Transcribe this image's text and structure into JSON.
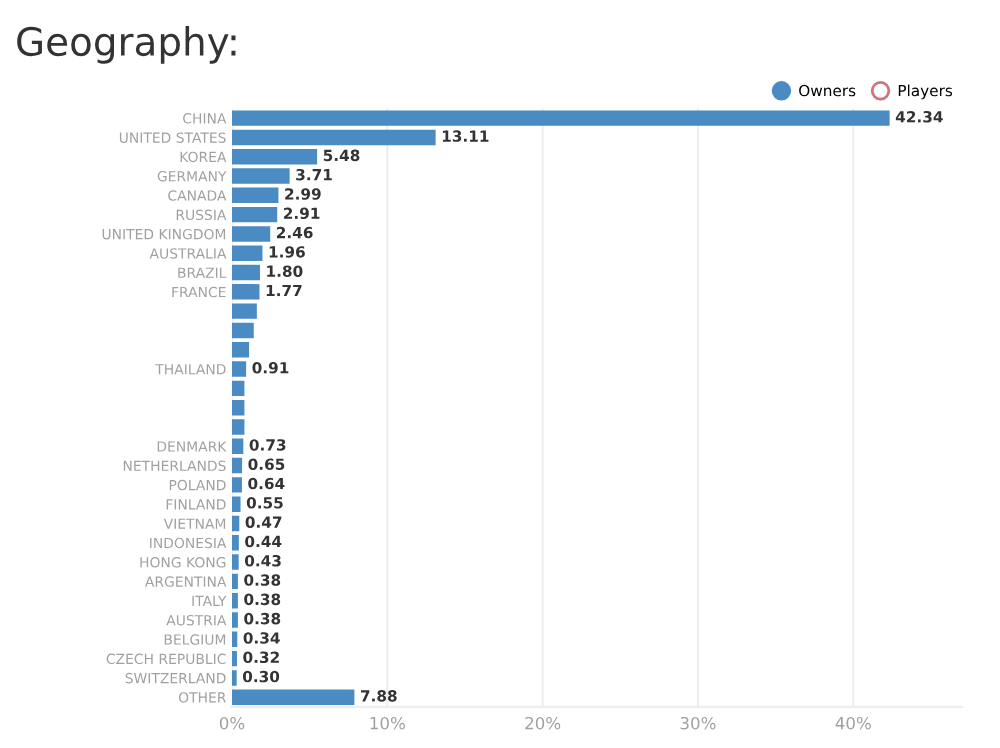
{
  "chart_data": {
    "type": "bar",
    "orientation": "horizontal",
    "title": "Geography:",
    "categories": [
      "CHINA",
      "UNITED STATES",
      "KOREA",
      "GERMANY",
      "CANADA",
      "RUSSIA",
      "UNITED KINGDOM",
      "AUSTRALIA",
      "BRAZIL",
      "FRANCE",
      null,
      null,
      null,
      "THAILAND",
      null,
      null,
      null,
      "DENMARK",
      "NETHERLANDS",
      "POLAND",
      "FINLAND",
      "VIETNAM",
      "INDONESIA",
      "HONG KONG",
      "ARGENTINA",
      "ITALY",
      "AUSTRIA",
      "BELGIUM",
      "CZECH REPUBLIC",
      "SWITZERLAND",
      "OTHER"
    ],
    "series": [
      {
        "name": "Owners",
        "color": "#4a8bc4",
        "values": [
          42.34,
          13.11,
          5.48,
          3.71,
          2.99,
          2.91,
          2.46,
          1.96,
          1.8,
          1.77,
          1.6,
          1.4,
          1.1,
          0.91,
          0.8,
          0.8,
          0.8,
          0.73,
          0.65,
          0.64,
          0.55,
          0.47,
          0.44,
          0.43,
          0.38,
          0.38,
          0.38,
          0.34,
          0.32,
          0.3,
          7.88
        ],
        "value_labels": [
          "42.34",
          "13.11",
          "5.48",
          "3.71",
          "2.99",
          "2.91",
          "2.46",
          "1.96",
          "1.80",
          "1.77",
          null,
          null,
          null,
          "0.91",
          null,
          null,
          null,
          "0.73",
          "0.65",
          "0.64",
          "0.55",
          "0.47",
          "0.44",
          "0.43",
          "0.38",
          "0.38",
          "0.38",
          "0.34",
          "0.32",
          "0.30",
          "7.88"
        ]
      },
      {
        "name": "Players",
        "color": "#d2737f",
        "values": [
          null,
          null,
          null,
          null,
          null,
          null,
          null,
          null,
          null,
          null,
          null,
          null,
          null,
          null,
          null,
          null,
          null,
          null,
          null,
          null,
          null,
          null,
          null,
          null,
          null,
          null,
          null,
          null,
          null,
          null,
          null
        ]
      }
    ],
    "xlim": [
      0,
      47
    ],
    "xticks": [
      {
        "value": 0,
        "label": "0%"
      },
      {
        "value": 10,
        "label": "10%"
      },
      {
        "value": 20,
        "label": "20%"
      },
      {
        "value": 30,
        "label": "30%"
      },
      {
        "value": 40,
        "label": "40%"
      }
    ],
    "grid": "x",
    "legend": "top right"
  }
}
